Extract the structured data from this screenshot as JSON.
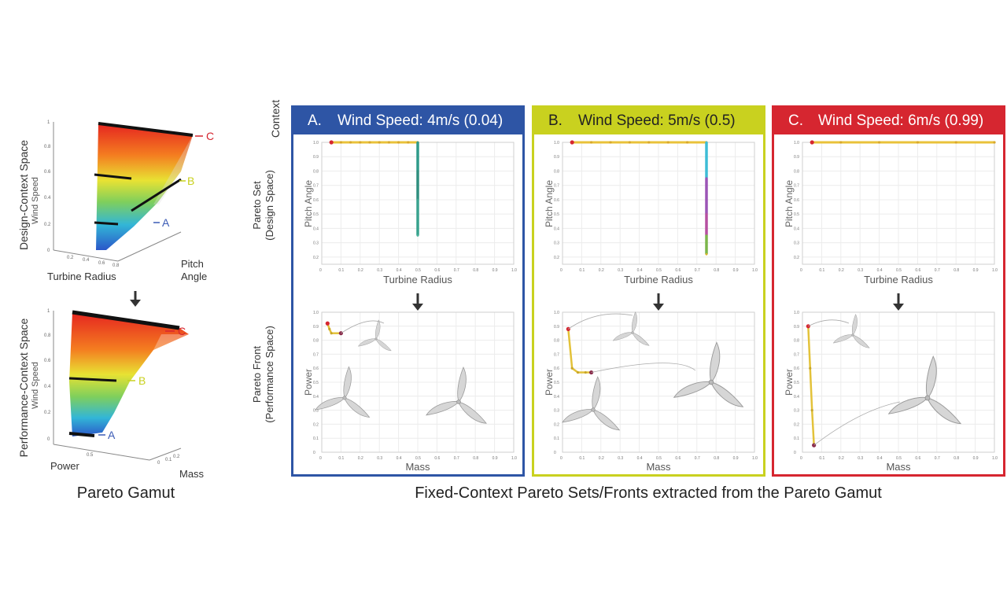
{
  "colors": {
    "panel_a": "#2e55a5",
    "panel_b": "#c9d11f",
    "panel_c": "#d62630",
    "label_a": "#3b5bb5",
    "label_b": "#c9d11f",
    "label_c": "#d62630"
  },
  "gamut": {
    "design_space_label": "Design-Context Space",
    "performance_space_label": "Performance-Context Space",
    "caption": "Pareto Gamut",
    "top_plot": {
      "z_label": "Wind Speed",
      "x_label": "Turbine Radius",
      "y_label_line1": "Pitch",
      "y_label_line2": "Angle",
      "z_ticks": [
        "0",
        "0.2",
        "0.4",
        "0.6",
        "0.8",
        "1"
      ],
      "x_ticks": [
        "0.2",
        "0.4",
        "0.6",
        "0.8"
      ],
      "markers": [
        "C",
        "B",
        "A"
      ]
    },
    "bottom_plot": {
      "z_label": "Wind Speed",
      "x_label": "Power",
      "y_label": "Mass",
      "z_ticks": [
        "0",
        "0.2",
        "0.4",
        "0.6",
        "0.8",
        "1"
      ],
      "x_ticks": [
        "0.5"
      ],
      "y_ticks": [
        "0",
        "0.1",
        "0.2"
      ],
      "markers": [
        "C",
        "B",
        "A"
      ]
    },
    "arrow": "down-arrow"
  },
  "row_labels": {
    "context": "Context",
    "pareto_set_line1": "Pareto Set",
    "pareto_set_line2": "(Design Space)",
    "pareto_front_line1": "Pareto Front",
    "pareto_front_line2": "(Performance Space)"
  },
  "panels": [
    {
      "letter": "A.",
      "title": "Wind Speed:  4m/s (0.04)"
    },
    {
      "letter": "B.",
      "title": "Wind Speed:  5m/s (0.5)"
    },
    {
      "letter": "C.",
      "title": "Wind Speed:  6m/s (0.99)"
    }
  ],
  "axes": {
    "set_x_label": "Turbine Radius",
    "set_y_label": "Pitch Angle",
    "front_x_label": "Mass",
    "front_y_label": "Power",
    "ticks": [
      "0",
      "0.1",
      "0.2",
      "0.3",
      "0.4",
      "0.5",
      "0.6",
      "0.7",
      "0.8",
      "0.9",
      "1.0"
    ]
  },
  "bottom_caption": "Fixed-Context Pareto Sets/Fronts extracted from the Pareto Gamut",
  "chart_data": [
    {
      "type": "scatter",
      "panel": "A",
      "xlabel": "Turbine Radius",
      "ylabel": "Pitch Angle",
      "xlim": [
        0,
        1
      ],
      "ylim": [
        0.15,
        1.0
      ],
      "series": [
        {
          "x": [
            0.05,
            0.1,
            0.15,
            0.2,
            0.25,
            0.3,
            0.35,
            0.4,
            0.45,
            0.5
          ],
          "y": [
            1.0,
            1.0,
            1.0,
            1.0,
            1.0,
            1.0,
            1.0,
            1.0,
            1.0,
            1.0
          ]
        },
        {
          "x": [
            0.5,
            0.5,
            0.5,
            0.5,
            0.5
          ],
          "y": [
            1.0,
            0.8,
            0.6,
            0.45,
            0.35
          ]
        }
      ]
    },
    {
      "type": "scatter",
      "panel": "A",
      "xlabel": "Mass",
      "ylabel": "Power",
      "xlim": [
        0,
        1
      ],
      "ylim": [
        0,
        1
      ],
      "series": [
        {
          "x": [
            0.03,
            0.04,
            0.05,
            0.1
          ],
          "y": [
            0.92,
            0.88,
            0.85,
            0.85
          ]
        }
      ]
    },
    {
      "type": "scatter",
      "panel": "B",
      "xlabel": "Turbine Radius",
      "ylabel": "Pitch Angle",
      "xlim": [
        0,
        1
      ],
      "ylim": [
        0.15,
        1.0
      ],
      "series": [
        {
          "x": [
            0.05,
            0.15,
            0.25,
            0.35,
            0.45,
            0.55,
            0.65,
            0.75
          ],
          "y": [
            1.0,
            1.0,
            1.0,
            1.0,
            1.0,
            1.0,
            1.0,
            1.0
          ]
        },
        {
          "x": [
            0.75,
            0.75,
            0.75,
            0.75,
            0.75
          ],
          "y": [
            1.0,
            0.75,
            0.5,
            0.35,
            0.22
          ]
        }
      ]
    },
    {
      "type": "scatter",
      "panel": "B",
      "xlabel": "Mass",
      "ylabel": "Power",
      "xlim": [
        0,
        1
      ],
      "ylim": [
        0,
        1
      ],
      "series": [
        {
          "x": [
            0.03,
            0.05,
            0.08,
            0.12,
            0.15
          ],
          "y": [
            0.88,
            0.6,
            0.57,
            0.57,
            0.57
          ]
        }
      ]
    },
    {
      "type": "scatter",
      "panel": "C",
      "xlabel": "Turbine Radius",
      "ylabel": "Pitch Angle",
      "xlim": [
        0,
        1
      ],
      "ylim": [
        0.15,
        1.0
      ],
      "series": [
        {
          "x": [
            0.05,
            0.2,
            0.4,
            0.6,
            0.8,
            1.0
          ],
          "y": [
            1.0,
            1.0,
            1.0,
            1.0,
            1.0,
            1.0
          ]
        }
      ]
    },
    {
      "type": "scatter",
      "panel": "C",
      "xlabel": "Mass",
      "ylabel": "Power",
      "xlim": [
        0,
        1
      ],
      "ylim": [
        0,
        1
      ],
      "series": [
        {
          "x": [
            0.03,
            0.04,
            0.05,
            0.06
          ],
          "y": [
            0.9,
            0.6,
            0.3,
            0.05
          ]
        }
      ]
    }
  ]
}
